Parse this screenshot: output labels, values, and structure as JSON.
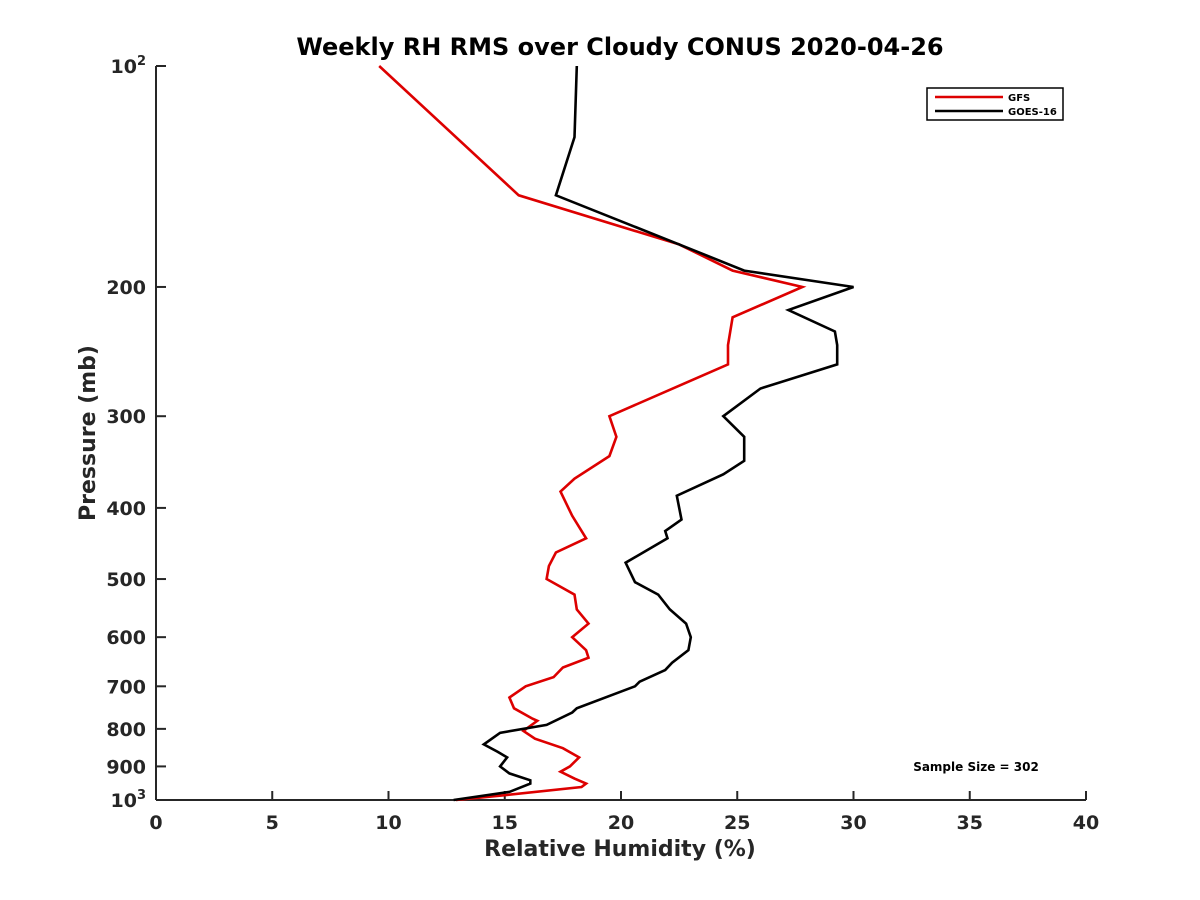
{
  "chart_data": {
    "type": "line",
    "title": "Weekly RH RMS over Cloudy CONUS 2020-04-26",
    "xlabel": "Relative Humidity (%)",
    "ylabel": "Pressure (mb)",
    "xlim": [
      0,
      40
    ],
    "ylim": [
      100,
      1000
    ],
    "y_scale": "log",
    "y_reversed": true,
    "grid": false,
    "legend_position": "top-right",
    "x_ticks": [
      0,
      5,
      10,
      15,
      20,
      25,
      30,
      35,
      40
    ],
    "y_ticks": [
      {
        "value": 100,
        "base": "10",
        "exp": "2"
      },
      {
        "value": 200,
        "label": "200"
      },
      {
        "value": 300,
        "label": "300"
      },
      {
        "value": 400,
        "label": "400"
      },
      {
        "value": 500,
        "label": "500"
      },
      {
        "value": 600,
        "label": "600"
      },
      {
        "value": 700,
        "label": "700"
      },
      {
        "value": 800,
        "label": "800"
      },
      {
        "value": 900,
        "label": "900"
      },
      {
        "value": 1000,
        "base": "10",
        "exp": "3"
      }
    ],
    "annotation": "Sample Size = 302",
    "series": [
      {
        "name": "GFS",
        "color": "#dd0000",
        "points": [
          [
            9.6,
            100
          ],
          [
            15.6,
            150
          ],
          [
            22.5,
            175
          ],
          [
            24.8,
            190
          ],
          [
            27.8,
            200
          ],
          [
            24.8,
            220
          ],
          [
            24.6,
            240
          ],
          [
            24.6,
            255
          ],
          [
            19.5,
            300
          ],
          [
            19.8,
            320
          ],
          [
            19.5,
            340
          ],
          [
            18.0,
            365
          ],
          [
            17.4,
            380
          ],
          [
            17.9,
            410
          ],
          [
            18.5,
            440
          ],
          [
            17.2,
            460
          ],
          [
            16.9,
            480
          ],
          [
            16.8,
            500
          ],
          [
            18.0,
            525
          ],
          [
            18.1,
            550
          ],
          [
            18.6,
            575
          ],
          [
            17.9,
            600
          ],
          [
            18.5,
            625
          ],
          [
            18.6,
            640
          ],
          [
            17.5,
            660
          ],
          [
            17.1,
            680
          ],
          [
            15.9,
            700
          ],
          [
            15.2,
            725
          ],
          [
            15.4,
            750
          ],
          [
            16.2,
            775
          ],
          [
            16.4,
            780
          ],
          [
            15.8,
            805
          ],
          [
            16.3,
            825
          ],
          [
            17.5,
            850
          ],
          [
            18.2,
            875
          ],
          [
            17.8,
            900
          ],
          [
            17.4,
            915
          ],
          [
            18.0,
            935
          ],
          [
            18.5,
            950
          ],
          [
            18.3,
            960
          ],
          [
            15.0,
            985
          ],
          [
            12.9,
            1000
          ]
        ]
      },
      {
        "name": "GOES-16",
        "color": "#000000",
        "points": [
          [
            18.1,
            100
          ],
          [
            18.0,
            125
          ],
          [
            17.2,
            150
          ],
          [
            22.5,
            175
          ],
          [
            25.3,
            190
          ],
          [
            30.0,
            200
          ],
          [
            27.2,
            215
          ],
          [
            29.2,
            230
          ],
          [
            29.3,
            240
          ],
          [
            29.3,
            255
          ],
          [
            26.0,
            275
          ],
          [
            24.4,
            300
          ],
          [
            25.3,
            320
          ],
          [
            25.3,
            345
          ],
          [
            24.4,
            360
          ],
          [
            22.4,
            385
          ],
          [
            22.6,
            415
          ],
          [
            21.9,
            430
          ],
          [
            22.0,
            440
          ],
          [
            20.2,
            475
          ],
          [
            20.6,
            505
          ],
          [
            21.6,
            525
          ],
          [
            22.1,
            550
          ],
          [
            22.8,
            575
          ],
          [
            23.0,
            600
          ],
          [
            22.9,
            625
          ],
          [
            22.2,
            650
          ],
          [
            21.9,
            665
          ],
          [
            20.8,
            690
          ],
          [
            20.6,
            700
          ],
          [
            18.1,
            750
          ],
          [
            17.9,
            760
          ],
          [
            16.8,
            790
          ],
          [
            14.8,
            810
          ],
          [
            14.1,
            840
          ],
          [
            14.7,
            860
          ],
          [
            15.1,
            875
          ],
          [
            14.8,
            900
          ],
          [
            15.2,
            920
          ],
          [
            16.1,
            940
          ],
          [
            16.1,
            950
          ],
          [
            15.2,
            975
          ],
          [
            12.8,
            1000
          ]
        ]
      }
    ]
  }
}
